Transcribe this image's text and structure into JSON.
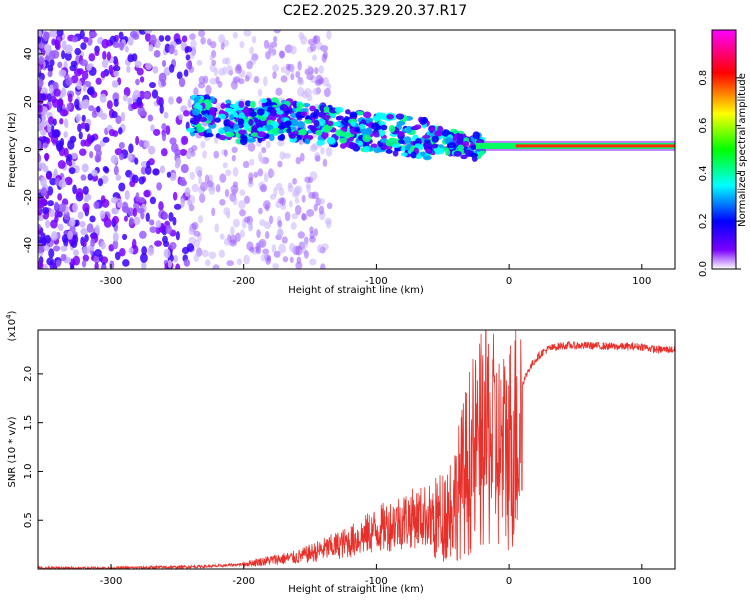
{
  "title": "C2E2.2025.329.20.37.R17",
  "chart_data": [
    {
      "type": "heatmap",
      "xlabel": "Height of straight line (km)",
      "ylabel": "Frequency (Hz)",
      "xlim": [
        -355,
        125
      ],
      "ylim": [
        -50,
        50
      ],
      "xticks": [
        -300,
        -200,
        -100,
        0,
        100
      ],
      "yticks": [
        -40,
        -20,
        0,
        20,
        40
      ],
      "grid": false,
      "colorbar": {
        "label": "Normalized spectral amplitude",
        "range": [
          0,
          1
        ],
        "ticks": [
          "0.0",
          "0.2",
          "0.4",
          "0.6",
          "0.8"
        ],
        "colormap": [
          "#ffffff",
          "#7a00ff",
          "#0000ff",
          "#00ffff",
          "#00ff00",
          "#ffff00",
          "#ff0000",
          "#ff00ff"
        ]
      },
      "ridge": [
        {
          "x": -240,
          "y": 15
        },
        {
          "x": -200,
          "y": 11
        },
        {
          "x": -180,
          "y": 13
        },
        {
          "x": -150,
          "y": 11
        },
        {
          "x": -120,
          "y": 9
        },
        {
          "x": -100,
          "y": 7
        },
        {
          "x": -80,
          "y": 6
        },
        {
          "x": -60,
          "y": 4
        },
        {
          "x": -40,
          "y": 3
        },
        {
          "x": -30,
          "y": 1
        },
        {
          "x": -20,
          "y": 1
        },
        {
          "x": 0,
          "y": 1
        },
        {
          "x": 50,
          "y": 1
        },
        {
          "x": 100,
          "y": 1
        },
        {
          "x": 125,
          "y": 1
        }
      ]
    },
    {
      "type": "line",
      "xlabel": "Height of straight line (km)",
      "ylabel": "SNR (10 * v/v)",
      "y_multiplier_label": "(x10",
      "y_multiplier_exp": "4",
      "xlim": [
        -355,
        125
      ],
      "ylim": [
        0,
        2.45
      ],
      "xticks": [
        -300,
        -200,
        -100,
        0,
        100
      ],
      "yticks": [
        "0.5",
        "1.0",
        "1.5",
        "2.0"
      ],
      "grid": false,
      "color": "#e8302a",
      "series": [
        {
          "name": "SNR",
          "x": [
            -355,
            -300,
            -250,
            -220,
            -200,
            -180,
            -160,
            -140,
            -120,
            -100,
            -80,
            -60,
            -50,
            -40,
            -30,
            -25,
            -20,
            -15,
            -10,
            -5,
            0,
            5,
            10,
            15,
            20,
            25,
            30,
            40,
            60,
            80,
            100,
            110,
            125
          ],
          "y": [
            0.01,
            0.01,
            0.02,
            0.03,
            0.05,
            0.09,
            0.12,
            0.2,
            0.28,
            0.4,
            0.5,
            0.55,
            0.65,
            0.85,
            1.3,
            1.4,
            1.55,
            1.65,
            1.45,
            1.4,
            1.5,
            1.7,
            1.9,
            2.05,
            2.15,
            2.22,
            2.26,
            2.29,
            2.29,
            2.28,
            2.28,
            2.25,
            2.25
          ]
        }
      ]
    }
  ]
}
